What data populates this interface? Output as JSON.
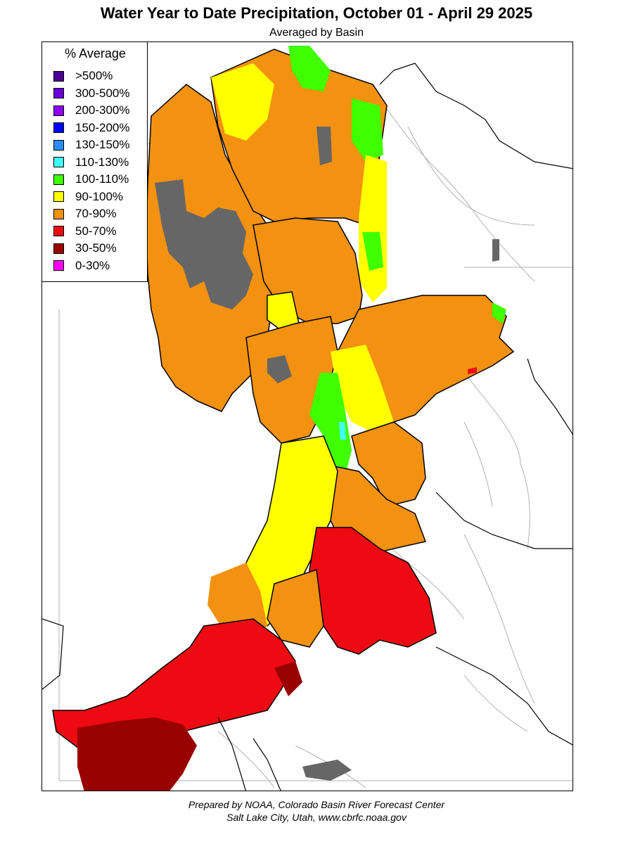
{
  "title": "Water Year to Date Precipitation, October 01  - April 29 2025",
  "subtitle": "Averaged by Basin",
  "legend": {
    "title": "% Average",
    "items": [
      {
        "label": ">500%",
        "color": "#4b0096"
      },
      {
        "label": "300-500%",
        "color": "#6a00d8"
      },
      {
        "label": "200-300%",
        "color": "#8f00ff"
      },
      {
        "label": "150-200%",
        "color": "#0000ff"
      },
      {
        "label": "130-150%",
        "color": "#2a8cff"
      },
      {
        "label": "110-130%",
        "color": "#40ffff"
      },
      {
        "label": "100-110%",
        "color": "#40ff00"
      },
      {
        "label": "90-100%",
        "color": "#ffff00"
      },
      {
        "label": "70-90%",
        "color": "#f39110"
      },
      {
        "label": "50-70%",
        "color": "#ee0a12"
      },
      {
        "label": "30-50%",
        "color": "#990000"
      },
      {
        "label": "0-30%",
        "color": "#ff00ff"
      }
    ]
  },
  "map_colors": {
    "no_data": "#666666",
    "border": "#000000",
    "river": "#aaaaaa"
  },
  "footer": {
    "line1": "Prepared by NOAA, Colorado Basin River Forecast Center",
    "line2": "Salt Lake City, Utah, www.cbrfc.noaa.gov"
  }
}
